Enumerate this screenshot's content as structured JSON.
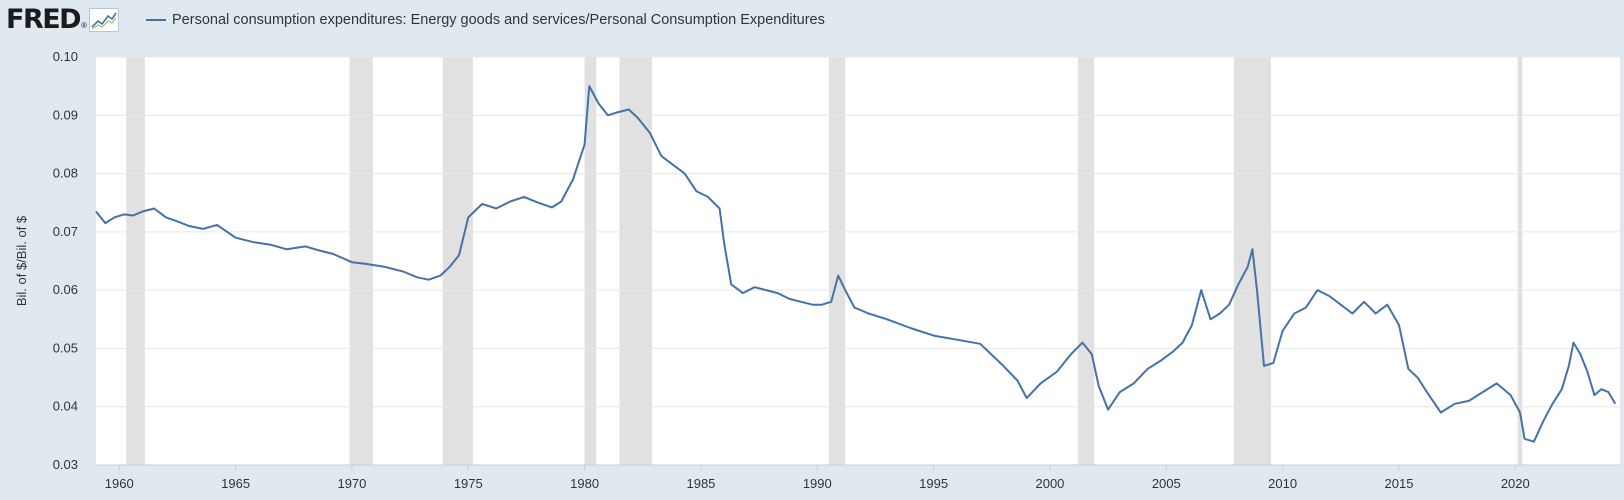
{
  "header": {
    "logo_text": "FRED",
    "logo_mark": "®",
    "logo_icon": "chart-line-icon",
    "series_label": "Personal consumption expenditures: Energy goods and services/Personal Consumption Expenditures"
  },
  "colors": {
    "series": "#4572a7",
    "background": "#e1e9f0",
    "plot_background": "#ffffff",
    "recession": "#e1e1e1",
    "grid": "#e6e6e6"
  },
  "chart_data": {
    "type": "line",
    "title": "",
    "xlabel": "",
    "ylabel": "Bil. of $/Bil. of $",
    "xlim": [
      1959.0,
      2024.5
    ],
    "ylim": [
      0.03,
      0.1
    ],
    "y_ticks": [
      0.03,
      0.04,
      0.05,
      0.06,
      0.07,
      0.08,
      0.09,
      0.1
    ],
    "y_tick_labels": [
      "0.03",
      "0.04",
      "0.05",
      "0.06",
      "0.07",
      "0.08",
      "0.09",
      "0.10"
    ],
    "x_ticks": [
      1960,
      1965,
      1970,
      1975,
      1980,
      1985,
      1990,
      1995,
      2000,
      2005,
      2010,
      2015,
      2020
    ],
    "x_tick_labels": [
      "1960",
      "1965",
      "1970",
      "1975",
      "1980",
      "1985",
      "1990",
      "1995",
      "2000",
      "2005",
      "2010",
      "2015",
      "2020"
    ],
    "grid": true,
    "legend": "top-left",
    "recessions": [
      [
        1960.3,
        1961.1
      ],
      [
        1969.9,
        1970.9
      ],
      [
        1973.9,
        1975.2
      ],
      [
        1980.0,
        1980.5
      ],
      [
        1981.5,
        1982.9
      ],
      [
        1990.5,
        1991.2
      ],
      [
        2001.2,
        2001.9
      ],
      [
        2007.9,
        2009.5
      ],
      [
        2020.1,
        2020.3
      ]
    ],
    "series": [
      {
        "name": "Personal consumption expenditures: Energy goods and services/Personal Consumption Expenditures",
        "x": [
          1959.0,
          1959.4,
          1959.8,
          1960.2,
          1960.6,
          1961.0,
          1961.5,
          1962.0,
          1962.5,
          1963.0,
          1963.6,
          1964.2,
          1965.0,
          1965.8,
          1966.5,
          1967.2,
          1968.0,
          1968.6,
          1969.2,
          1970.0,
          1970.6,
          1971.4,
          1972.2,
          1972.8,
          1973.3,
          1973.8,
          1974.2,
          1974.6,
          1975.0,
          1975.6,
          1976.2,
          1976.8,
          1977.4,
          1978.0,
          1978.6,
          1979.0,
          1979.5,
          1980.0,
          1980.2,
          1980.6,
          1981.0,
          1981.4,
          1981.9,
          1982.3,
          1982.8,
          1983.3,
          1983.8,
          1984.3,
          1984.8,
          1985.3,
          1985.8,
          1986.0,
          1986.3,
          1986.8,
          1987.3,
          1987.8,
          1988.3,
          1988.8,
          1989.3,
          1989.8,
          1990.2,
          1990.6,
          1990.9,
          1991.2,
          1991.6,
          1992.2,
          1993.0,
          1994.0,
          1995.0,
          1996.0,
          1997.0,
          1998.0,
          1998.6,
          1999.0,
          1999.6,
          2000.3,
          2000.9,
          2001.4,
          2001.8,
          2002.1,
          2002.5,
          2003.0,
          2003.6,
          2004.2,
          2004.8,
          2005.3,
          2005.7,
          2006.1,
          2006.5,
          2006.9,
          2007.3,
          2007.7,
          2008.1,
          2008.5,
          2008.7,
          2008.9,
          2009.2,
          2009.6,
          2010.0,
          2010.5,
          2011.0,
          2011.5,
          2012.0,
          2012.5,
          2013.0,
          2013.5,
          2014.0,
          2014.5,
          2015.0,
          2015.4,
          2015.8,
          2016.2,
          2016.8,
          2017.4,
          2018.0,
          2018.6,
          2019.2,
          2019.8,
          2020.2,
          2020.4,
          2020.8,
          2021.2,
          2021.6,
          2022.0,
          2022.3,
          2022.5,
          2022.8,
          2023.1,
          2023.4,
          2023.7,
          2024.0,
          2024.3
        ],
        "values": [
          0.0735,
          0.0715,
          0.0725,
          0.073,
          0.0728,
          0.0735,
          0.074,
          0.0725,
          0.0718,
          0.071,
          0.0705,
          0.0712,
          0.069,
          0.0682,
          0.0678,
          0.067,
          0.0675,
          0.0668,
          0.0662,
          0.0648,
          0.0645,
          0.064,
          0.0632,
          0.0622,
          0.0618,
          0.0625,
          0.064,
          0.066,
          0.0725,
          0.0748,
          0.074,
          0.0752,
          0.076,
          0.075,
          0.0742,
          0.0752,
          0.079,
          0.085,
          0.095,
          0.092,
          0.09,
          0.0905,
          0.091,
          0.0895,
          0.087,
          0.083,
          0.0815,
          0.08,
          0.077,
          0.076,
          0.074,
          0.068,
          0.061,
          0.0595,
          0.0605,
          0.06,
          0.0595,
          0.0585,
          0.058,
          0.0575,
          0.0575,
          0.058,
          0.0625,
          0.06,
          0.057,
          0.056,
          0.055,
          0.0535,
          0.0522,
          0.0515,
          0.0508,
          0.047,
          0.0445,
          0.0415,
          0.044,
          0.046,
          0.049,
          0.051,
          0.049,
          0.0435,
          0.0395,
          0.0425,
          0.044,
          0.0465,
          0.048,
          0.0495,
          0.051,
          0.054,
          0.06,
          0.055,
          0.056,
          0.0575,
          0.061,
          0.064,
          0.067,
          0.06,
          0.047,
          0.0475,
          0.053,
          0.056,
          0.057,
          0.06,
          0.059,
          0.0575,
          0.056,
          0.058,
          0.056,
          0.0575,
          0.054,
          0.0465,
          0.045,
          0.0425,
          0.039,
          0.0405,
          0.041,
          0.0425,
          0.044,
          0.042,
          0.039,
          0.0345,
          0.034,
          0.0375,
          0.0405,
          0.043,
          0.047,
          0.051,
          0.049,
          0.046,
          0.042,
          0.043,
          0.0425,
          0.0405
        ]
      }
    ]
  }
}
